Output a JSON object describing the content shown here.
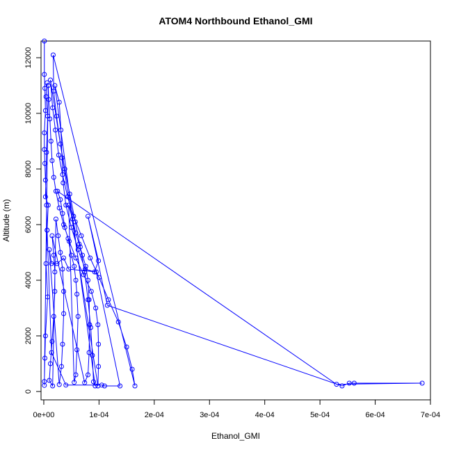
{
  "chart_data": {
    "type": "line",
    "title": "ATOM4 Northbound Ethanol_GMI",
    "xlabel": "Ethanol_GMI",
    "ylabel": "Altitude (m)",
    "xlim": [
      -5e-06,
      0.0007
    ],
    "ylim": [
      -300,
      12600
    ],
    "x_ticks": [
      0,
      0.0001,
      0.0002,
      0.0003,
      0.0004,
      0.0005,
      0.0006,
      0.0007
    ],
    "x_tick_labels": [
      "0e+00",
      "1e-04",
      "2e-04",
      "3e-04",
      "4e-04",
      "5e-04",
      "6e-04",
      "7e-04"
    ],
    "y_ticks": [
      0,
      2000,
      4000,
      6000,
      8000,
      10000,
      12000
    ],
    "y_tick_labels": [
      "0",
      "2000",
      "4000",
      "6000",
      "8000",
      "10000",
      "12000"
    ],
    "series_color": "#0000ff",
    "marker": "open-circle",
    "grid": false,
    "legend": "none",
    "points": [
      [
        1e-06,
        12600
      ],
      [
        1e-06,
        11400
      ],
      [
        2e-06,
        10900
      ],
      [
        3e-06,
        10100
      ],
      [
        1e-06,
        9300
      ],
      [
        1e-06,
        8700
      ],
      [
        2e-06,
        8200
      ],
      [
        3e-06,
        7600
      ],
      [
        5e-06,
        6700
      ],
      [
        6e-06,
        5800
      ],
      [
        4e-06,
        4600
      ],
      [
        7e-06,
        3400
      ],
      [
        3e-06,
        2000
      ],
      [
        2e-06,
        1200
      ],
      [
        1e-06,
        360
      ],
      [
        1e-06,
        220
      ],
      [
        8e-06,
        11000
      ],
      [
        9e-06,
        10500
      ],
      [
        1.1e-05,
        9800
      ],
      [
        1.3e-05,
        9000
      ],
      [
        1.5e-05,
        8300
      ],
      [
        1.8e-05,
        7700
      ],
      [
        2.2e-05,
        7200
      ],
      [
        2.8e-05,
        6600
      ],
      [
        3.6e-05,
        6000
      ],
      [
        4.6e-05,
        5400
      ],
      [
        5.8e-05,
        4800
      ],
      [
        7.2e-05,
        4200
      ],
      [
        8.6e-05,
        3600
      ],
      [
        9.4e-05,
        3000
      ],
      [
        9.8e-05,
        2400
      ],
      [
        9.9e-05,
        1700
      ],
      [
        9.9e-05,
        900
      ],
      [
        9.8e-05,
        200
      ],
      [
        1.2e-05,
        11200
      ],
      [
        1.6e-05,
        10200
      ],
      [
        2.1e-05,
        9400
      ],
      [
        2.7e-05,
        8500
      ],
      [
        3.4e-05,
        7800
      ],
      [
        4.3e-05,
        7000
      ],
      [
        5.4e-05,
        6300
      ],
      [
        6.8e-05,
        5600
      ],
      [
        8.4e-05,
        4800
      ],
      [
        0.0001,
        4100
      ],
      [
        0.000117,
        3300
      ],
      [
        0.000135,
        2500
      ],
      [
        0.00015,
        1600
      ],
      [
        0.00016,
        800
      ],
      [
        0.000165,
        200
      ],
      [
        1.7e-05,
        12100
      ],
      [
        1.8e-05,
        10800
      ],
      [
        2.3e-05,
        9900
      ],
      [
        3e-05,
        8900
      ],
      [
        3.8e-05,
        8000
      ],
      [
        4.7e-05,
        7100
      ],
      [
        5.7e-05,
        6100
      ],
      [
        6.6e-05,
        5200
      ],
      [
        7.4e-05,
        4300
      ],
      [
        8e-05,
        3300
      ],
      [
        8.5e-05,
        2300
      ],
      [
        8.8e-05,
        1300
      ],
      [
        9e-05,
        350
      ],
      [
        9.3e-05,
        200
      ],
      [
        2e-05,
        11000
      ],
      [
        2.8e-05,
        10400
      ],
      [
        3.1e-05,
        9400
      ],
      [
        3.3e-05,
        8400
      ],
      [
        3.5e-05,
        7500
      ],
      [
        4e-05,
        6700
      ],
      [
        5e-05,
        5900
      ],
      [
        6.2e-05,
        5100
      ],
      [
        7.5e-05,
        4400
      ],
      [
        9.2e-05,
        4300
      ],
      [
        9.9e-05,
        4700
      ],
      [
        8e-05,
        6300
      ],
      [
        0.000115,
        3100
      ],
      [
        0.00054,
        200
      ],
      [
        0.000553,
        300
      ],
      [
        0.000562,
        300
      ],
      [
        0.000685,
        300
      ],
      [
        0.00053,
        260
      ],
      [
        2.5e-05,
        7200
      ],
      [
        3e-05,
        6900
      ],
      [
        3.4e-05,
        6400
      ],
      [
        3.8e-05,
        5900
      ],
      [
        4.4e-05,
        5500
      ],
      [
        5e-05,
        4900
      ],
      [
        5.5e-05,
        4500
      ],
      [
        5.8e-05,
        4000
      ],
      [
        6e-05,
        3500
      ],
      [
        6.2e-05,
        2700
      ],
      [
        6e-05,
        1500
      ],
      [
        5.8e-05,
        600
      ],
      [
        5.5e-05,
        330
      ],
      [
        4.5e-05,
        6700
      ],
      [
        5.2e-05,
        6200
      ],
      [
        5.8e-05,
        5700
      ],
      [
        6.4e-05,
        5300
      ],
      [
        7e-05,
        4900
      ],
      [
        7.6e-05,
        4500
      ],
      [
        8e-05,
        4000
      ],
      [
        8.2e-05,
        3300
      ],
      [
        8.3e-05,
        2400
      ],
      [
        8.2e-05,
        1400
      ],
      [
        8e-05,
        600
      ],
      [
        7.4e-05,
        320
      ],
      [
        1.5e-05,
        5600
      ],
      [
        1.8e-05,
        4900
      ],
      [
        2e-05,
        4300
      ],
      [
        2e-05,
        3600
      ],
      [
        1.8e-05,
        2700
      ],
      [
        1.5e-05,
        1800
      ],
      [
        1.2e-05,
        1000
      ],
      [
        1e-05,
        400
      ],
      [
        1.6e-05,
        200
      ],
      [
        2.2e-05,
        6200
      ],
      [
        2.6e-05,
        5600
      ],
      [
        3e-05,
        5000
      ],
      [
        3.4e-05,
        4400
      ],
      [
        3.6e-05,
        3600
      ],
      [
        3.6e-05,
        2800
      ],
      [
        3.4e-05,
        1700
      ],
      [
        3.2e-05,
        900
      ],
      [
        2.8e-05,
        250
      ],
      [
        1e-05,
        5100
      ],
      [
        1.4e-05,
        4600
      ],
      [
        2.4e-05,
        4600
      ],
      [
        3.6e-05,
        4800
      ],
      [
        4.5e-05,
        4400
      ],
      [
        9.5e-05,
        4300
      ],
      [
        0.000138,
        200
      ],
      [
        0.00011,
        200
      ],
      [
        0.000105,
        230
      ],
      [
        4e-05,
        230
      ],
      [
        1.4e-05,
        1400
      ],
      [
        6e-06,
        5800
      ],
      [
        8e-06,
        6700
      ],
      [
        3e-06,
        7000
      ],
      [
        5e-06,
        8600
      ],
      [
        7e-06,
        9900
      ],
      [
        4e-06,
        10600
      ],
      [
        6e-06,
        11100
      ]
    ]
  }
}
